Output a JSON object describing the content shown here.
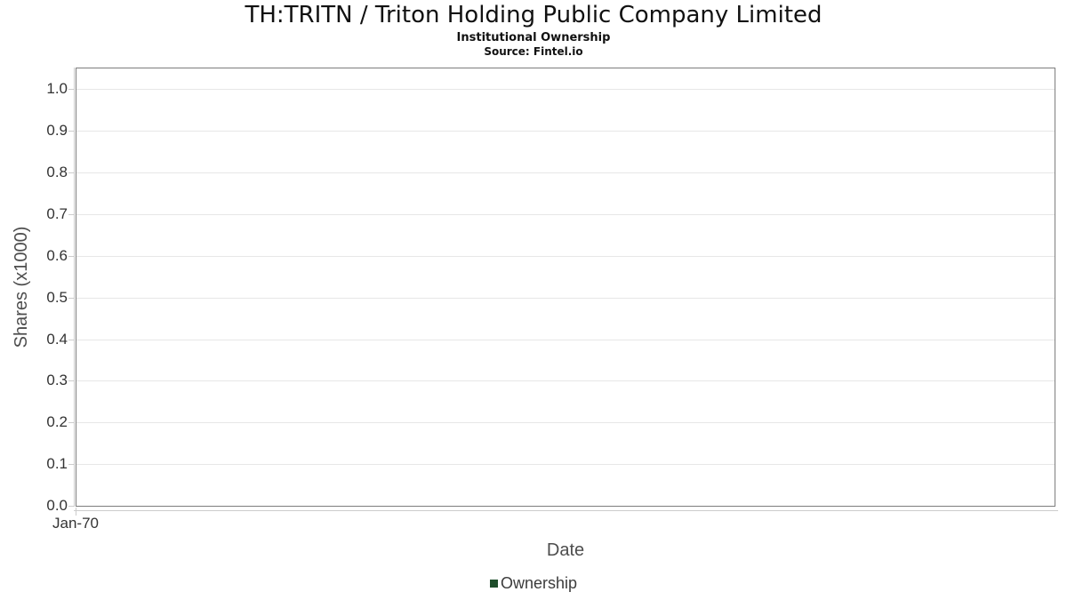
{
  "header": {
    "title": "TH:TRITN / Triton Holding Public Company Limited",
    "subtitle": "Institutional Ownership",
    "source": "Source: Fintel.io"
  },
  "chart_data": {
    "type": "line",
    "title": "TH:TRITN / Triton Holding Public Company Limited",
    "subtitle": "Institutional Ownership",
    "source": "Source: Fintel.io",
    "xlabel": "Date",
    "ylabel": "Shares (x1000)",
    "ylim": [
      0,
      1.05
    ],
    "y_tick_values": [
      0,
      0.1,
      0.2,
      0.3,
      0.4,
      0.5,
      0.6,
      0.7,
      0.8,
      0.9,
      1.0
    ],
    "y_tick_labels": [
      "0.0",
      "0.1",
      "0.2",
      "0.3",
      "0.4",
      "0.5",
      "0.6",
      "0.7",
      "0.8",
      "0.9",
      "1.0"
    ],
    "x_ticks": [
      {
        "label": "Jan-70",
        "fraction": 0
      }
    ],
    "grid": true,
    "legend_position": "bottom-center",
    "series": [
      {
        "name": "Ownership",
        "color": "#1e4d2b",
        "values": []
      }
    ]
  },
  "colors": {
    "background": "#ffffff",
    "plot_border": "#7d7d7d",
    "gridline": "#e7e7e7",
    "axis_line": "#cccccc",
    "tick": "#cccccc",
    "title_text": "#111111",
    "tick_label_text": "#333333",
    "axis_title_text": "#4d4d4d",
    "legend_text": "#3c3c3c",
    "series_ownership": "#1e4d2b"
  }
}
